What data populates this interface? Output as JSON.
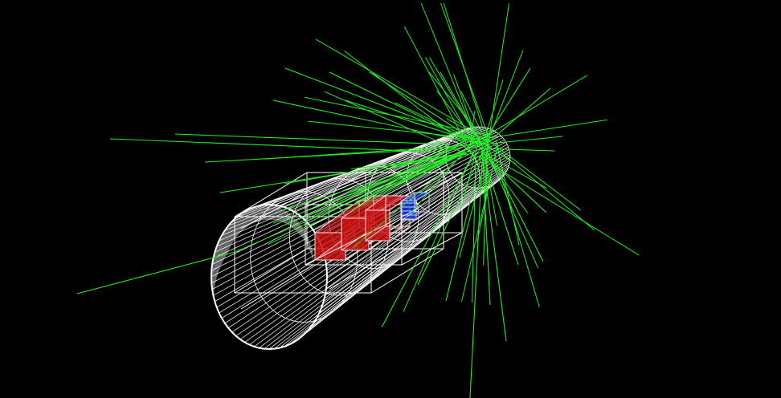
{
  "scene": {
    "background_color": "#000000",
    "detector_wire_color": "#ffffff",
    "track_color": "#22ee22",
    "volume_colors": {
      "calorimeter_blocks": "#cc1111",
      "tracker_blocks": "#1133dd"
    },
    "track_count": 75,
    "detector_shape": "cylinder-wireframe",
    "icon": "particle-event-display"
  }
}
